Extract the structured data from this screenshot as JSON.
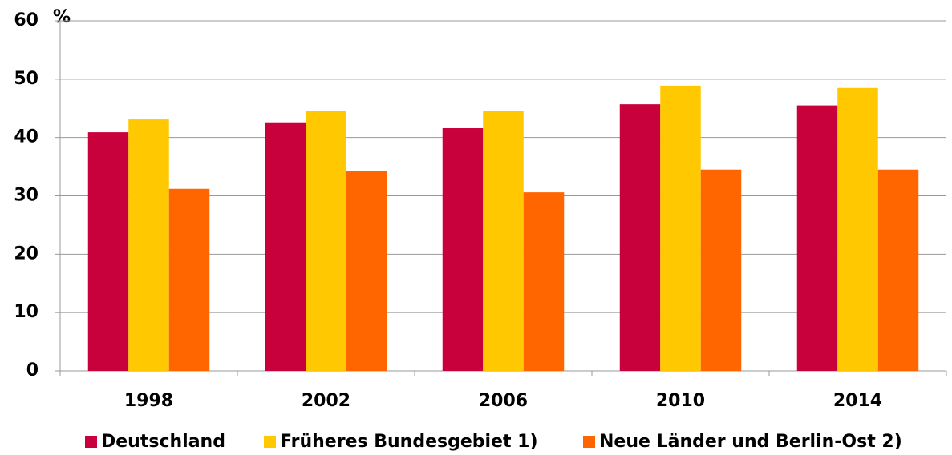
{
  "chart_data": {
    "type": "bar",
    "y_label": "%",
    "categories": [
      "1998",
      "2002",
      "2006",
      "2010",
      "2014"
    ],
    "series": [
      {
        "name": "Deutschland",
        "color": "#c8003c",
        "values": [
          40.9,
          42.6,
          41.6,
          45.7,
          45.5
        ]
      },
      {
        "name": "Früheres Bundesgebiet 1)",
        "color": "#ffc800",
        "values": [
          43.1,
          44.6,
          44.6,
          48.9,
          48.5
        ]
      },
      {
        "name": "Neue Länder und Berlin-Ost 2)",
        "color": "#ff6600",
        "values": [
          31.2,
          34.2,
          30.6,
          34.5,
          34.5
        ]
      }
    ],
    "ylim": [
      0,
      60
    ],
    "yticks": [
      0,
      10,
      20,
      30,
      40,
      50,
      60
    ],
    "grid": true,
    "legend": "bottom"
  }
}
